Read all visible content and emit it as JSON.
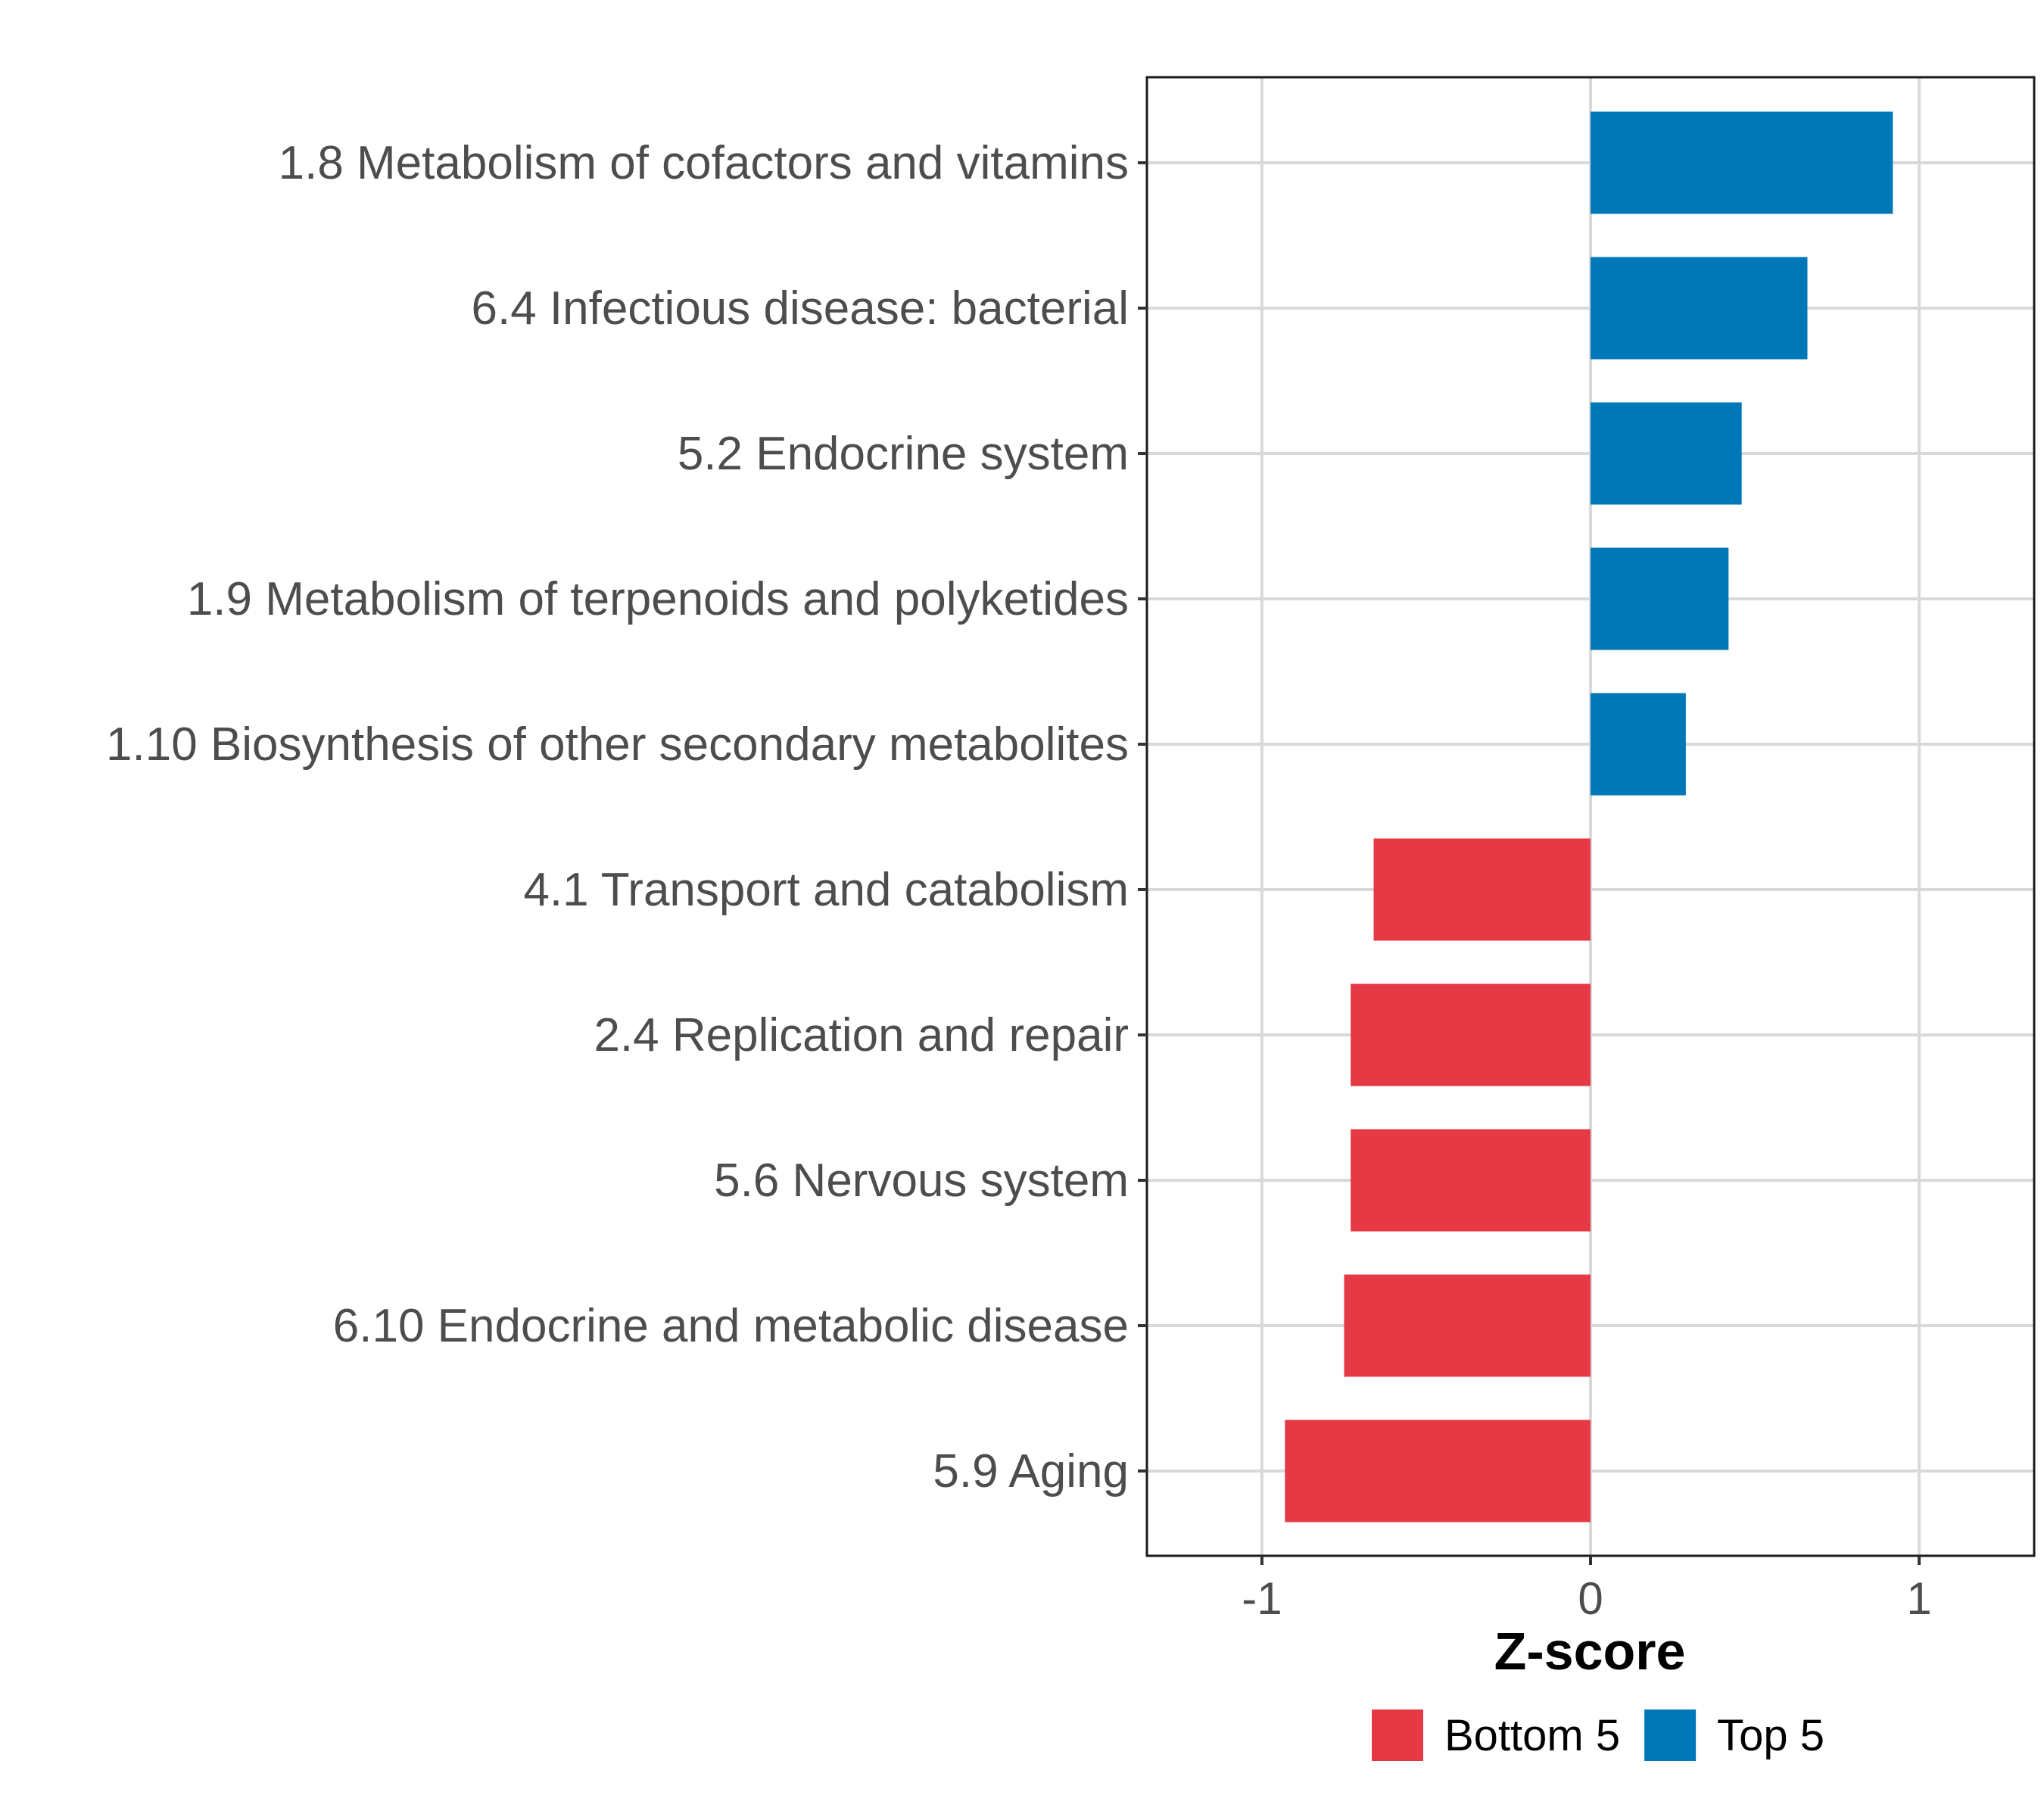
{
  "chart_data": {
    "type": "bar",
    "orientation": "horizontal",
    "title": "",
    "xlabel": "Z-score",
    "ylabel": "",
    "xlim": [
      -1.35,
      1.35
    ],
    "xticks": [
      -1,
      0,
      1
    ],
    "xtick_labels": [
      "-1",
      "0",
      "1"
    ],
    "grid": true,
    "legend_position": "bottom",
    "categories": [
      "1.8 Metabolism of cofactors and vitamins",
      "6.4 Infectious disease: bacterial",
      "5.2 Endocrine system",
      "1.9 Metabolism of terpenoids and polyketides",
      "1.10 Biosynthesis of other secondary metabolites",
      "4.1 Transport and catabolism",
      "2.4 Replication and repair",
      "5.6 Nervous system",
      "6.10 Endocrine and metabolic disease",
      "5.9 Aging"
    ],
    "values": [
      0.92,
      0.66,
      0.46,
      0.42,
      0.29,
      -0.66,
      -0.73,
      -0.73,
      -0.75,
      -0.93
    ],
    "groups": [
      "Top 5",
      "Top 5",
      "Top 5",
      "Top 5",
      "Top 5",
      "Bottom 5",
      "Bottom 5",
      "Bottom 5",
      "Bottom 5",
      "Bottom 5"
    ],
    "legend": [
      {
        "name": "Bottom 5",
        "color": "#e63946"
      },
      {
        "name": "Top 5",
        "color": "#0077b6"
      }
    ]
  }
}
